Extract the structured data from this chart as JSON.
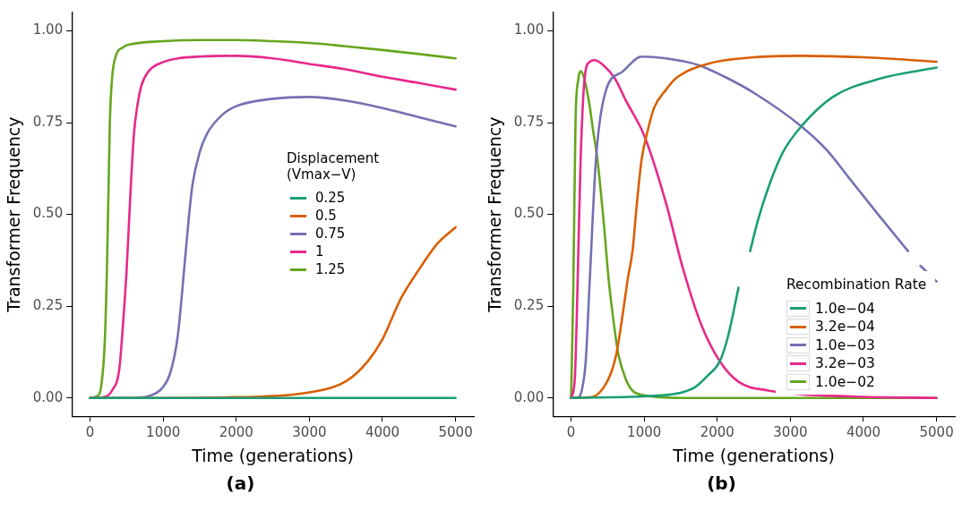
{
  "chart_data": [
    {
      "type": "line",
      "xlabel": "Time (generations)",
      "ylabel": "Transformer Frequency",
      "legend_title": "Displacement\n(Vmax−V)",
      "legend": "right",
      "grid": false,
      "xlim": [
        -250,
        5250
      ],
      "xticks": [
        0,
        1000,
        2000,
        3000,
        4000,
        5000
      ],
      "ylim": [
        -0.05,
        1.05
      ],
      "yticks": [
        {
          "value": 0,
          "label": "0.00"
        },
        {
          "value": 0.25,
          "label": "0.25"
        },
        {
          "value": 0.5,
          "label": "0.50"
        },
        {
          "value": 0.75,
          "label": "0.75"
        },
        {
          "value": 1,
          "label": "1.00"
        }
      ],
      "annotations": [
        "(a)"
      ],
      "series": [
        {
          "name": "0.25",
          "color": "#1b9e77",
          "x": [
            0,
            5000
          ],
          "values": [
            0,
            0
          ]
        },
        {
          "name": "0.5",
          "color": "#d95f02",
          "x": [
            0,
            1000,
            2000,
            2500,
            3000,
            3500,
            3800,
            4000,
            4250,
            4500,
            4750,
            5000
          ],
          "values": [
            0,
            0,
            0.002,
            0.005,
            0.015,
            0.045,
            0.1,
            0.16,
            0.27,
            0.35,
            0.42,
            0.465
          ]
        },
        {
          "name": "0.75",
          "color": "#7570b3",
          "x": [
            0,
            500,
            800,
            1000,
            1100,
            1200,
            1300,
            1350,
            1400,
            1500,
            1600,
            1800,
            2000,
            2500,
            3000,
            3500,
            4000,
            4500,
            5000
          ],
          "values": [
            0,
            0,
            0.005,
            0.03,
            0.07,
            0.17,
            0.38,
            0.49,
            0.58,
            0.67,
            0.72,
            0.77,
            0.795,
            0.815,
            0.82,
            0.81,
            0.79,
            0.765,
            0.74
          ]
        },
        {
          "name": "1",
          "color": "#e7298a",
          "x": [
            0,
            200,
            300,
            400,
            450,
            500,
            550,
            600,
            650,
            700,
            800,
            1000,
            1200,
            1500,
            2000,
            2500,
            3000,
            3500,
            4000,
            4500,
            5000
          ],
          "values": [
            0,
            0.003,
            0.02,
            0.08,
            0.2,
            0.35,
            0.55,
            0.72,
            0.8,
            0.85,
            0.89,
            0.915,
            0.925,
            0.93,
            0.932,
            0.925,
            0.91,
            0.895,
            0.875,
            0.858,
            0.84
          ]
        },
        {
          "name": "1.25",
          "color": "#66a61e",
          "x": [
            0,
            100,
            150,
            200,
            230,
            250,
            270,
            300,
            350,
            450,
            600,
            1000,
            1500,
            2000,
            2500,
            3000,
            3500,
            4000,
            4500,
            5000
          ],
          "values": [
            0,
            0.005,
            0.03,
            0.15,
            0.35,
            0.55,
            0.75,
            0.87,
            0.93,
            0.955,
            0.965,
            0.972,
            0.975,
            0.975,
            0.972,
            0.967,
            0.958,
            0.948,
            0.937,
            0.925
          ]
        }
      ]
    },
    {
      "type": "line",
      "xlabel": "Time (generations)",
      "ylabel": "Transformer Frequency",
      "legend_title": "Recombination Rate",
      "legend": "bottom right",
      "grid": false,
      "xlim": [
        -250,
        5250
      ],
      "xticks": [
        0,
        1000,
        2000,
        3000,
        4000,
        5000
      ],
      "ylim": [
        -0.05,
        1.05
      ],
      "yticks": [
        {
          "value": 0,
          "label": "0.00"
        },
        {
          "value": 0.25,
          "label": "0.25"
        },
        {
          "value": 0.5,
          "label": "0.50"
        },
        {
          "value": 0.75,
          "label": "0.75"
        },
        {
          "value": 1,
          "label": "1.00"
        }
      ],
      "annotations": [
        "(b)"
      ],
      "series": [
        {
          "name": "1.0e−04",
          "color": "#1b9e77",
          "x": [
            0,
            1000,
            1300,
            1520,
            1700,
            1865,
            2035,
            2150,
            2290,
            2370,
            2450,
            2550,
            2720,
            2900,
            3150,
            3580,
            4230,
            5000
          ],
          "values": [
            0,
            0.004,
            0.008,
            0.015,
            0.03,
            0.06,
            0.1,
            0.17,
            0.3,
            null,
            0.4,
            0.48,
            0.585,
            0.67,
            0.74,
            0.82,
            0.87,
            0.9
          ]
        },
        {
          "name": "3.2e−04",
          "color": "#d95f02",
          "x": [
            0,
            300,
            450,
            550,
            620,
            700,
            780,
            840,
            900,
            965,
            1050,
            1135,
            1300,
            1430,
            1865,
            2500,
            3150,
            4000,
            5000
          ],
          "values": [
            0,
            0.003,
            0.03,
            0.07,
            0.12,
            0.22,
            0.33,
            0.4,
            0.53,
            0.65,
            0.73,
            0.79,
            0.84,
            0.87,
            0.91,
            0.928,
            0.932,
            0.928,
            0.916
          ]
        },
        {
          "name": "1.0e−03",
          "color": "#7570b3",
          "x": [
            0,
            100,
            145,
            200,
            255,
            340,
            465,
            710,
            965,
            1300,
            1740,
            2100,
            2510,
            3150,
            3500,
            3800,
            4200,
            4610,
            4700,
            4780,
            5000
          ],
          "values": [
            0,
            0.002,
            0.02,
            0.1,
            0.32,
            0.65,
            0.83,
            0.89,
            0.93,
            0.925,
            0.907,
            0.875,
            0.83,
            0.74,
            0.675,
            0.6,
            0.5,
            0.4,
            null,
            0.36,
            0.317
          ]
        },
        {
          "name": "3.2e−03",
          "color": "#e7298a",
          "x": [
            0,
            50,
            80,
            130,
            190,
            250,
            320,
            450,
            600,
            750,
            1000,
            1300,
            1520,
            1780,
            2035,
            2290,
            2700,
            3150,
            4000,
            5000
          ],
          "values": [
            0,
            0.05,
            0.24,
            0.65,
            0.88,
            0.915,
            0.92,
            0.905,
            0.87,
            0.81,
            0.715,
            0.53,
            0.36,
            0.2,
            0.1,
            0.044,
            0.02,
            0.01,
            0.003,
            0
          ]
        },
        {
          "name": "1.0e−02",
          "color": "#66a61e",
          "x": [
            0,
            30,
            60,
            100,
            130,
            180,
            250,
            300,
            360,
            450,
            515,
            600,
            645,
            750,
            840,
            1000,
            1200,
            1500,
            5000
          ],
          "values": [
            0,
            0.3,
            0.75,
            0.87,
            0.89,
            0.87,
            0.8,
            0.73,
            0.65,
            0.47,
            0.32,
            0.18,
            0.12,
            0.05,
            0.02,
            0.007,
            0.002,
            0,
            0
          ]
        }
      ]
    }
  ]
}
